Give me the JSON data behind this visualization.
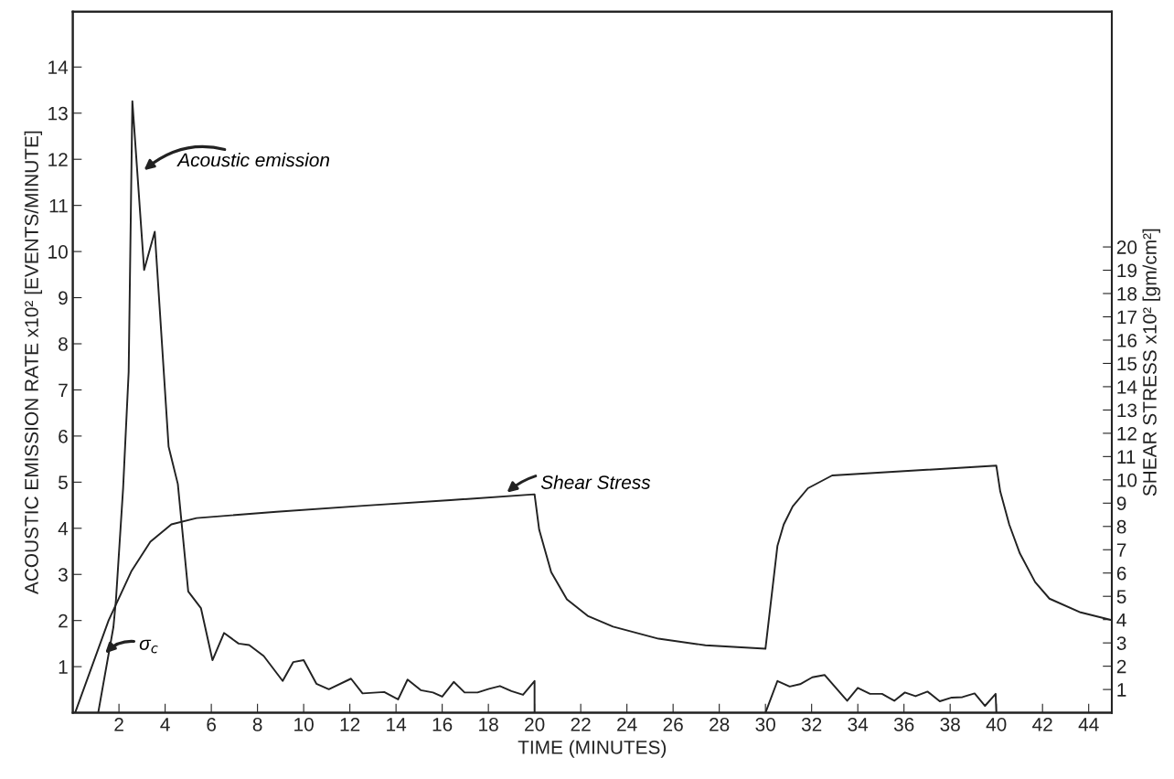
{
  "chart_data": {
    "type": "line",
    "xlabel": "TIME (MINUTES)",
    "ylabel": "ACOUSTIC EMISSION RATE x10² [EVENTS/MINUTE]",
    "y2label": "SHEAR STRESS x10² [gm/cm²]",
    "xlim": [
      0,
      45
    ],
    "xticks": [
      2,
      4,
      6,
      8,
      10,
      12,
      14,
      16,
      18,
      20,
      22,
      24,
      26,
      28,
      30,
      32,
      34,
      36,
      38,
      40,
      42,
      44
    ],
    "ylim": [
      0,
      15.2
    ],
    "yticks": [
      1,
      2,
      3,
      4,
      5,
      6,
      7,
      8,
      9,
      10,
      11,
      12,
      13,
      14
    ],
    "y2lim": [
      0,
      30.1
    ],
    "y2ticks": [
      1,
      2,
      3,
      4,
      5,
      6,
      7,
      8,
      9,
      10,
      11,
      12,
      13,
      14,
      15,
      16,
      17,
      18,
      19,
      20
    ],
    "grid": false,
    "marker": "none",
    "line_style": "solid",
    "series": [
      {
        "color": "#222222",
        "x": [
          1.1,
          1.76,
          1.87,
          2.18,
          2.42,
          2.58,
          3.09,
          3.55,
          4.15,
          4.55,
          5.0,
          5.55,
          6.05,
          6.55,
          7.18,
          7.64,
          8.27,
          9.09,
          9.55,
          10.0,
          10.55,
          11.09,
          12.05,
          12.55,
          13.49,
          14.09,
          14.5,
          15.07,
          15.6,
          16.0,
          16.5,
          16.97,
          17.53,
          18.03,
          18.5,
          19.0,
          19.5,
          20.0,
          20.0,
          25.0,
          30.0,
          30.52,
          31.05,
          31.5,
          32.03,
          32.56,
          33.54,
          34.0,
          34.53,
          35.05,
          35.58,
          36.04,
          36.5,
          37.02,
          37.55,
          38.07,
          38.53,
          39.06,
          39.51,
          39.97,
          40.0
        ],
        "values": [
          0,
          1.86,
          2.45,
          4.87,
          7.39,
          13.26,
          9.6,
          10.43,
          5.77,
          4.96,
          2.63,
          2.27,
          1.14,
          1.73,
          1.5,
          1.47,
          1.23,
          0.69,
          1.1,
          1.14,
          0.63,
          0.51,
          0.74,
          0.42,
          0.45,
          0.29,
          0.72,
          0.49,
          0.44,
          0.35,
          0.67,
          0.44,
          0.44,
          0.52,
          0.58,
          0.47,
          0.39,
          0.69,
          0,
          null,
          0,
          0.69,
          0.57,
          0.62,
          0.77,
          0.82,
          0.26,
          0.54,
          0.41,
          0.41,
          0.26,
          0.44,
          0.36,
          0.46,
          0.25,
          0.33,
          0.34,
          0.42,
          0.15,
          0.41,
          0
        ]
      },
      {
        "color": "#222222",
        "axis": "y2",
        "x": [
          0.1,
          1.55,
          2.55,
          3.36,
          4.27,
          5.36,
          8.82,
          12.74,
          16.35,
          20.0,
          20.2,
          20.72,
          21.4,
          22.3,
          23.4,
          25.37,
          27.4,
          30.0,
          30.52,
          30.79,
          31.18,
          31.84,
          32.89,
          40.0,
          40.17,
          40.56,
          41.02,
          41.68,
          42.3,
          43.65,
          44.96
        ],
        "values": [
          0,
          3.96,
          6.1,
          7.34,
          8.09,
          8.36,
          8.63,
          8.9,
          9.13,
          9.38,
          7.86,
          6.04,
          4.87,
          4.16,
          3.7,
          3.18,
          2.9,
          2.75,
          7.17,
          8.08,
          8.86,
          9.64,
          10.19,
          10.61,
          9.5,
          8.08,
          6.84,
          5.61,
          4.9,
          4.31,
          3.99
        ]
      }
    ],
    "annotations": [
      {
        "text": "Acoustic emission",
        "x": 3.0,
        "y": 11.73
      },
      {
        "text": "Shear Stress",
        "x": 18.72,
        "y": 4.74
      },
      {
        "text": "σ$_{c}$",
        "x": 1.33,
        "y": 1.25
      }
    ]
  }
}
